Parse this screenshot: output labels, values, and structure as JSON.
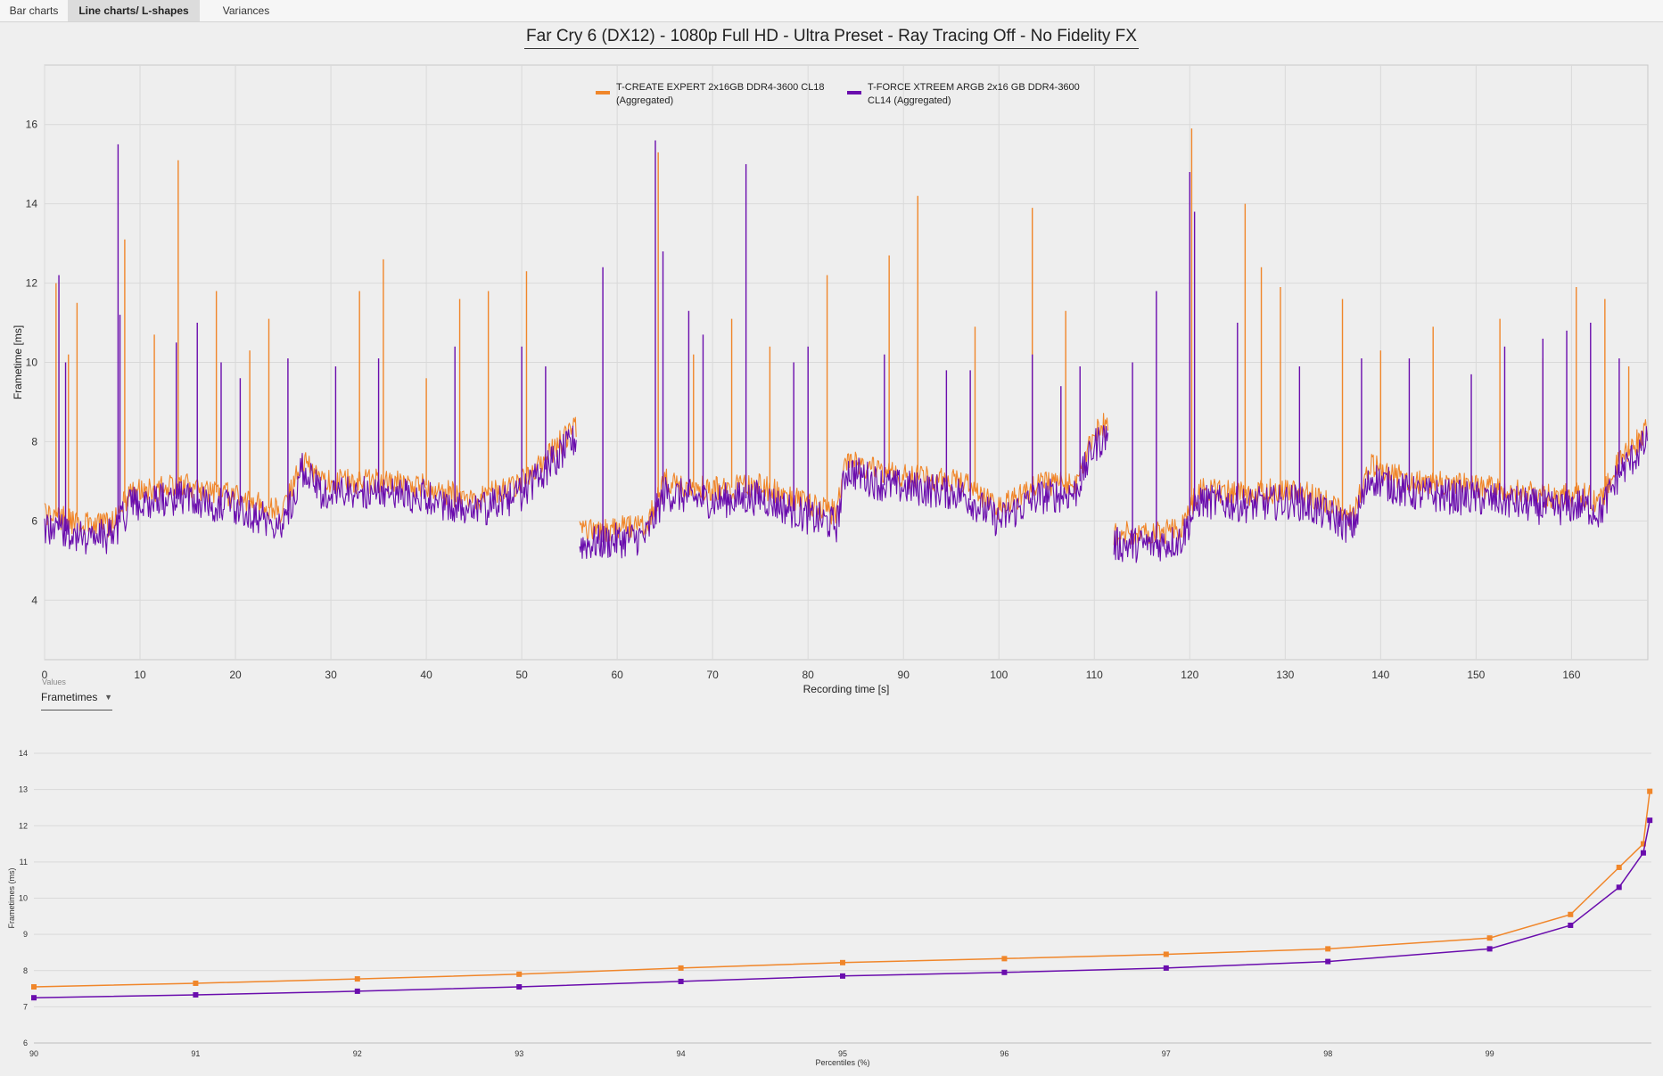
{
  "tabs": [
    {
      "label": "Bar charts",
      "active": false
    },
    {
      "label": "Line charts/ L-shapes",
      "active": true
    },
    {
      "label": "Variances",
      "active": false
    }
  ],
  "title": "Far Cry 6 (DX12) - 1080p Full HD - Ultra Preset - Ray Tracing Off - No Fidelity FX",
  "values_selector": {
    "label": "Values",
    "selected": "Frametimes",
    "caret_icon": "chevron-down-icon"
  },
  "colors": {
    "series1": "#f0862a",
    "series2": "#6a0dad",
    "grid": "#d9d9d9",
    "background": "#efefef"
  },
  "chart_data": [
    {
      "type": "line",
      "xlabel": "Recording time [s]",
      "ylabel": "Frametime [ms]",
      "xlim": [
        0,
        168
      ],
      "ylim": [
        2.5,
        17.5
      ],
      "xticks": [
        0,
        10,
        20,
        30,
        40,
        50,
        60,
        70,
        80,
        90,
        100,
        110,
        120,
        130,
        140,
        150,
        160
      ],
      "yticks": [
        4,
        6,
        8,
        10,
        12,
        14,
        16
      ],
      "grid": true,
      "legend_placement": "top-center",
      "baseline": {
        "x": [
          0,
          4,
          7,
          9,
          15,
          20,
          25,
          27,
          29,
          35,
          40,
          45,
          50,
          55,
          55.8,
          56,
          60,
          63,
          65,
          70,
          75,
          80,
          83,
          84,
          88,
          92,
          96,
          100,
          104,
          108,
          110,
          111.5,
          112,
          116,
          119,
          121,
          126,
          131,
          135,
          137,
          139,
          143,
          148,
          153,
          158,
          161,
          163,
          165,
          168
        ],
        "y": [
          6.2,
          5.9,
          5.9,
          6.7,
          6.9,
          6.6,
          6.2,
          7.6,
          7.0,
          7.0,
          6.9,
          6.5,
          7.0,
          8.2,
          8.4,
          5.7,
          5.8,
          5.9,
          7.0,
          6.8,
          6.9,
          6.4,
          6.2,
          7.6,
          7.2,
          7.1,
          7.0,
          6.3,
          6.9,
          7.0,
          8.2,
          8.5,
          5.7,
          5.7,
          5.8,
          6.8,
          6.7,
          6.8,
          6.4,
          6.1,
          7.4,
          7.0,
          6.9,
          6.8,
          6.6,
          6.7,
          6.5,
          7.5,
          8.3
        ],
        "series2_offset": -0.3
      },
      "series": [
        {
          "name": "T-CREATE EXPERT 2x16GB DDR4-3600 CL18 (Aggregated)",
          "spikes": [
            [
              1.2,
              12.0
            ],
            [
              2.5,
              10.2
            ],
            [
              3.4,
              11.5
            ],
            [
              8.4,
              13.1
            ],
            [
              11.5,
              10.7
            ],
            [
              14.0,
              15.1
            ],
            [
              18.0,
              11.8
            ],
            [
              21.5,
              10.3
            ],
            [
              23.5,
              11.1
            ],
            [
              33.0,
              11.8
            ],
            [
              35.5,
              12.6
            ],
            [
              40.0,
              9.6
            ],
            [
              43.5,
              11.6
            ],
            [
              46.5,
              11.8
            ],
            [
              50.5,
              12.3
            ],
            [
              64.3,
              15.3
            ],
            [
              68.0,
              10.2
            ],
            [
              72.0,
              11.1
            ],
            [
              76.0,
              10.4
            ],
            [
              82.0,
              12.2
            ],
            [
              88.5,
              12.7
            ],
            [
              91.5,
              14.2
            ],
            [
              97.5,
              10.9
            ],
            [
              103.5,
              13.9
            ],
            [
              107.0,
              11.3
            ],
            [
              120.2,
              15.9
            ],
            [
              125.8,
              14.0
            ],
            [
              127.5,
              12.4
            ],
            [
              129.5,
              11.9
            ],
            [
              136.0,
              11.6
            ],
            [
              140.0,
              10.3
            ],
            [
              145.5,
              10.9
            ],
            [
              152.5,
              11.1
            ],
            [
              157.0,
              10.1
            ],
            [
              160.5,
              11.9
            ],
            [
              163.5,
              11.6
            ],
            [
              166.0,
              9.9
            ]
          ]
        },
        {
          "name": "T-FORCE XTREEM ARGB 2x16 GB DDR4-3600 CL14 (Aggregated)",
          "spikes": [
            [
              1.5,
              12.2
            ],
            [
              2.2,
              10.0
            ],
            [
              7.7,
              15.5
            ],
            [
              7.9,
              11.2
            ],
            [
              13.8,
              10.5
            ],
            [
              16.0,
              11.0
            ],
            [
              18.5,
              10.0
            ],
            [
              20.5,
              9.6
            ],
            [
              25.5,
              10.1
            ],
            [
              30.5,
              9.9
            ],
            [
              35.0,
              10.1
            ],
            [
              43.0,
              10.4
            ],
            [
              50.0,
              10.4
            ],
            [
              52.5,
              9.9
            ],
            [
              58.5,
              12.4
            ],
            [
              64.0,
              15.6
            ],
            [
              64.8,
              12.8
            ],
            [
              67.5,
              11.3
            ],
            [
              69.0,
              10.7
            ],
            [
              73.5,
              15.0
            ],
            [
              78.5,
              10.0
            ],
            [
              80.0,
              10.4
            ],
            [
              88.0,
              10.2
            ],
            [
              94.5,
              9.8
            ],
            [
              97.0,
              9.8
            ],
            [
              103.5,
              10.2
            ],
            [
              106.5,
              9.4
            ],
            [
              108.5,
              9.9
            ],
            [
              114.0,
              10.0
            ],
            [
              116.5,
              11.8
            ],
            [
              120.0,
              14.8
            ],
            [
              120.5,
              13.8
            ],
            [
              125.0,
              11.0
            ],
            [
              131.5,
              9.9
            ],
            [
              138.0,
              10.1
            ],
            [
              143.0,
              10.1
            ],
            [
              149.5,
              9.7
            ],
            [
              153.0,
              10.4
            ],
            [
              157.0,
              10.6
            ],
            [
              159.5,
              10.8
            ],
            [
              162.0,
              11.0
            ],
            [
              165.0,
              10.1
            ]
          ]
        }
      ]
    },
    {
      "type": "line",
      "xlabel": "Percentiles (%)",
      "ylabel": "Frametimes (ms)",
      "xlim": [
        90,
        100
      ],
      "ylim": [
        6,
        14
      ],
      "xticks": [
        90,
        91,
        92,
        93,
        94,
        95,
        96,
        97,
        98,
        99
      ],
      "yticks": [
        6,
        7,
        8,
        9,
        10,
        11,
        12,
        13,
        14
      ],
      "grid": true,
      "series": [
        {
          "x": [
            90,
            91,
            92,
            93,
            94,
            95,
            96,
            97,
            98,
            99,
            99.5,
            99.8,
            99.95,
            99.99
          ],
          "y": [
            7.55,
            7.65,
            7.77,
            7.9,
            8.07,
            8.22,
            8.33,
            8.45,
            8.6,
            8.9,
            9.55,
            10.85,
            11.5,
            12.95
          ]
        },
        {
          "x": [
            90,
            91,
            92,
            93,
            94,
            95,
            96,
            97,
            98,
            99,
            99.5,
            99.8,
            99.95,
            99.99
          ],
          "y": [
            7.25,
            7.33,
            7.43,
            7.55,
            7.7,
            7.85,
            7.95,
            8.07,
            8.25,
            8.6,
            9.25,
            10.3,
            11.25,
            12.15
          ]
        }
      ]
    }
  ]
}
